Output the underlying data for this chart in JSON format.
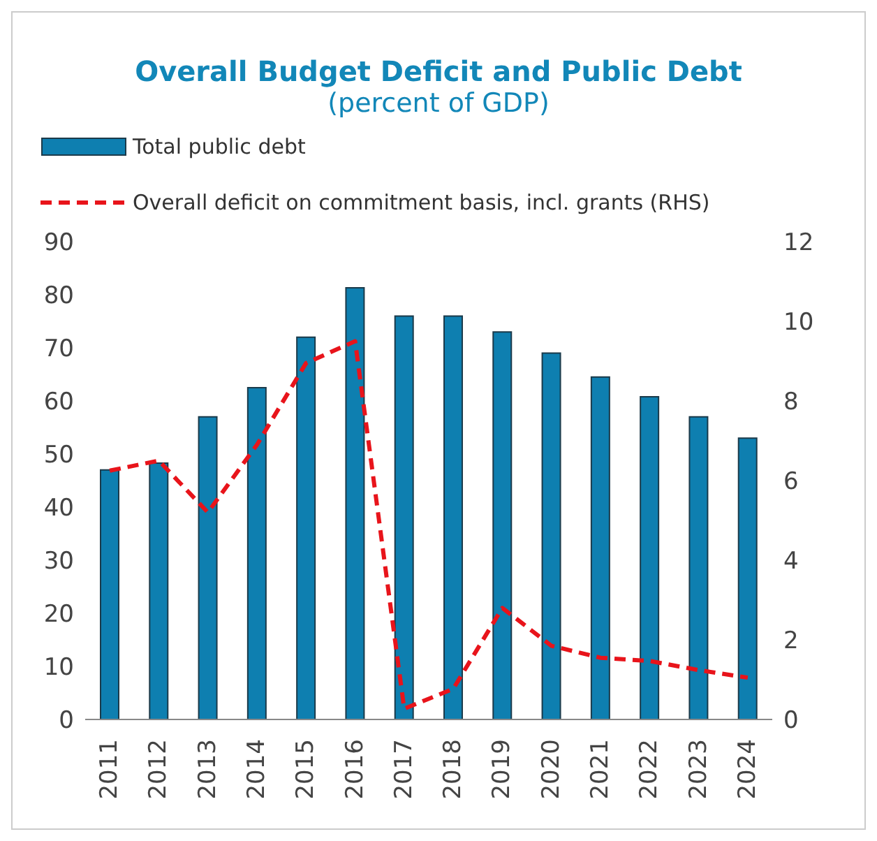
{
  "chart_data": {
    "type": "bar",
    "title": "Overall Budget Deficit and Public Debt",
    "subtitle": "(percent of GDP)",
    "categories": [
      "2011",
      "2012",
      "2013",
      "2014",
      "2015",
      "2016",
      "2017",
      "2018",
      "2019",
      "2020",
      "2021",
      "2022",
      "2023",
      "2024"
    ],
    "series": [
      {
        "name": "Total public debt",
        "color": "#0e7fb0",
        "values": [
          47,
          48.3,
          57,
          62.5,
          72,
          81.3,
          76,
          76,
          73,
          69,
          64.5,
          60.8,
          57,
          53
        ]
      },
      {
        "name": "Overall deficit on commitment basis, incl. grants (RHS)",
        "type": "line",
        "axis": "y2",
        "color": "#e8141b",
        "line_style": "dashed",
        "values": [
          6.25,
          6.5,
          5.2,
          6.9,
          8.95,
          9.5,
          0.27,
          0.77,
          2.8,
          1.85,
          1.55,
          1.47,
          1.24,
          1.05
        ]
      }
    ],
    "ylim": [
      0,
      90
    ],
    "yticks": [
      0,
      10,
      20,
      30,
      40,
      50,
      60,
      70,
      80,
      90
    ],
    "y2lim": [
      0,
      12
    ],
    "y2ticks": [
      0,
      2,
      4,
      6,
      8,
      10,
      12
    ],
    "grid": false,
    "legend": "top left",
    "marker": "none"
  }
}
